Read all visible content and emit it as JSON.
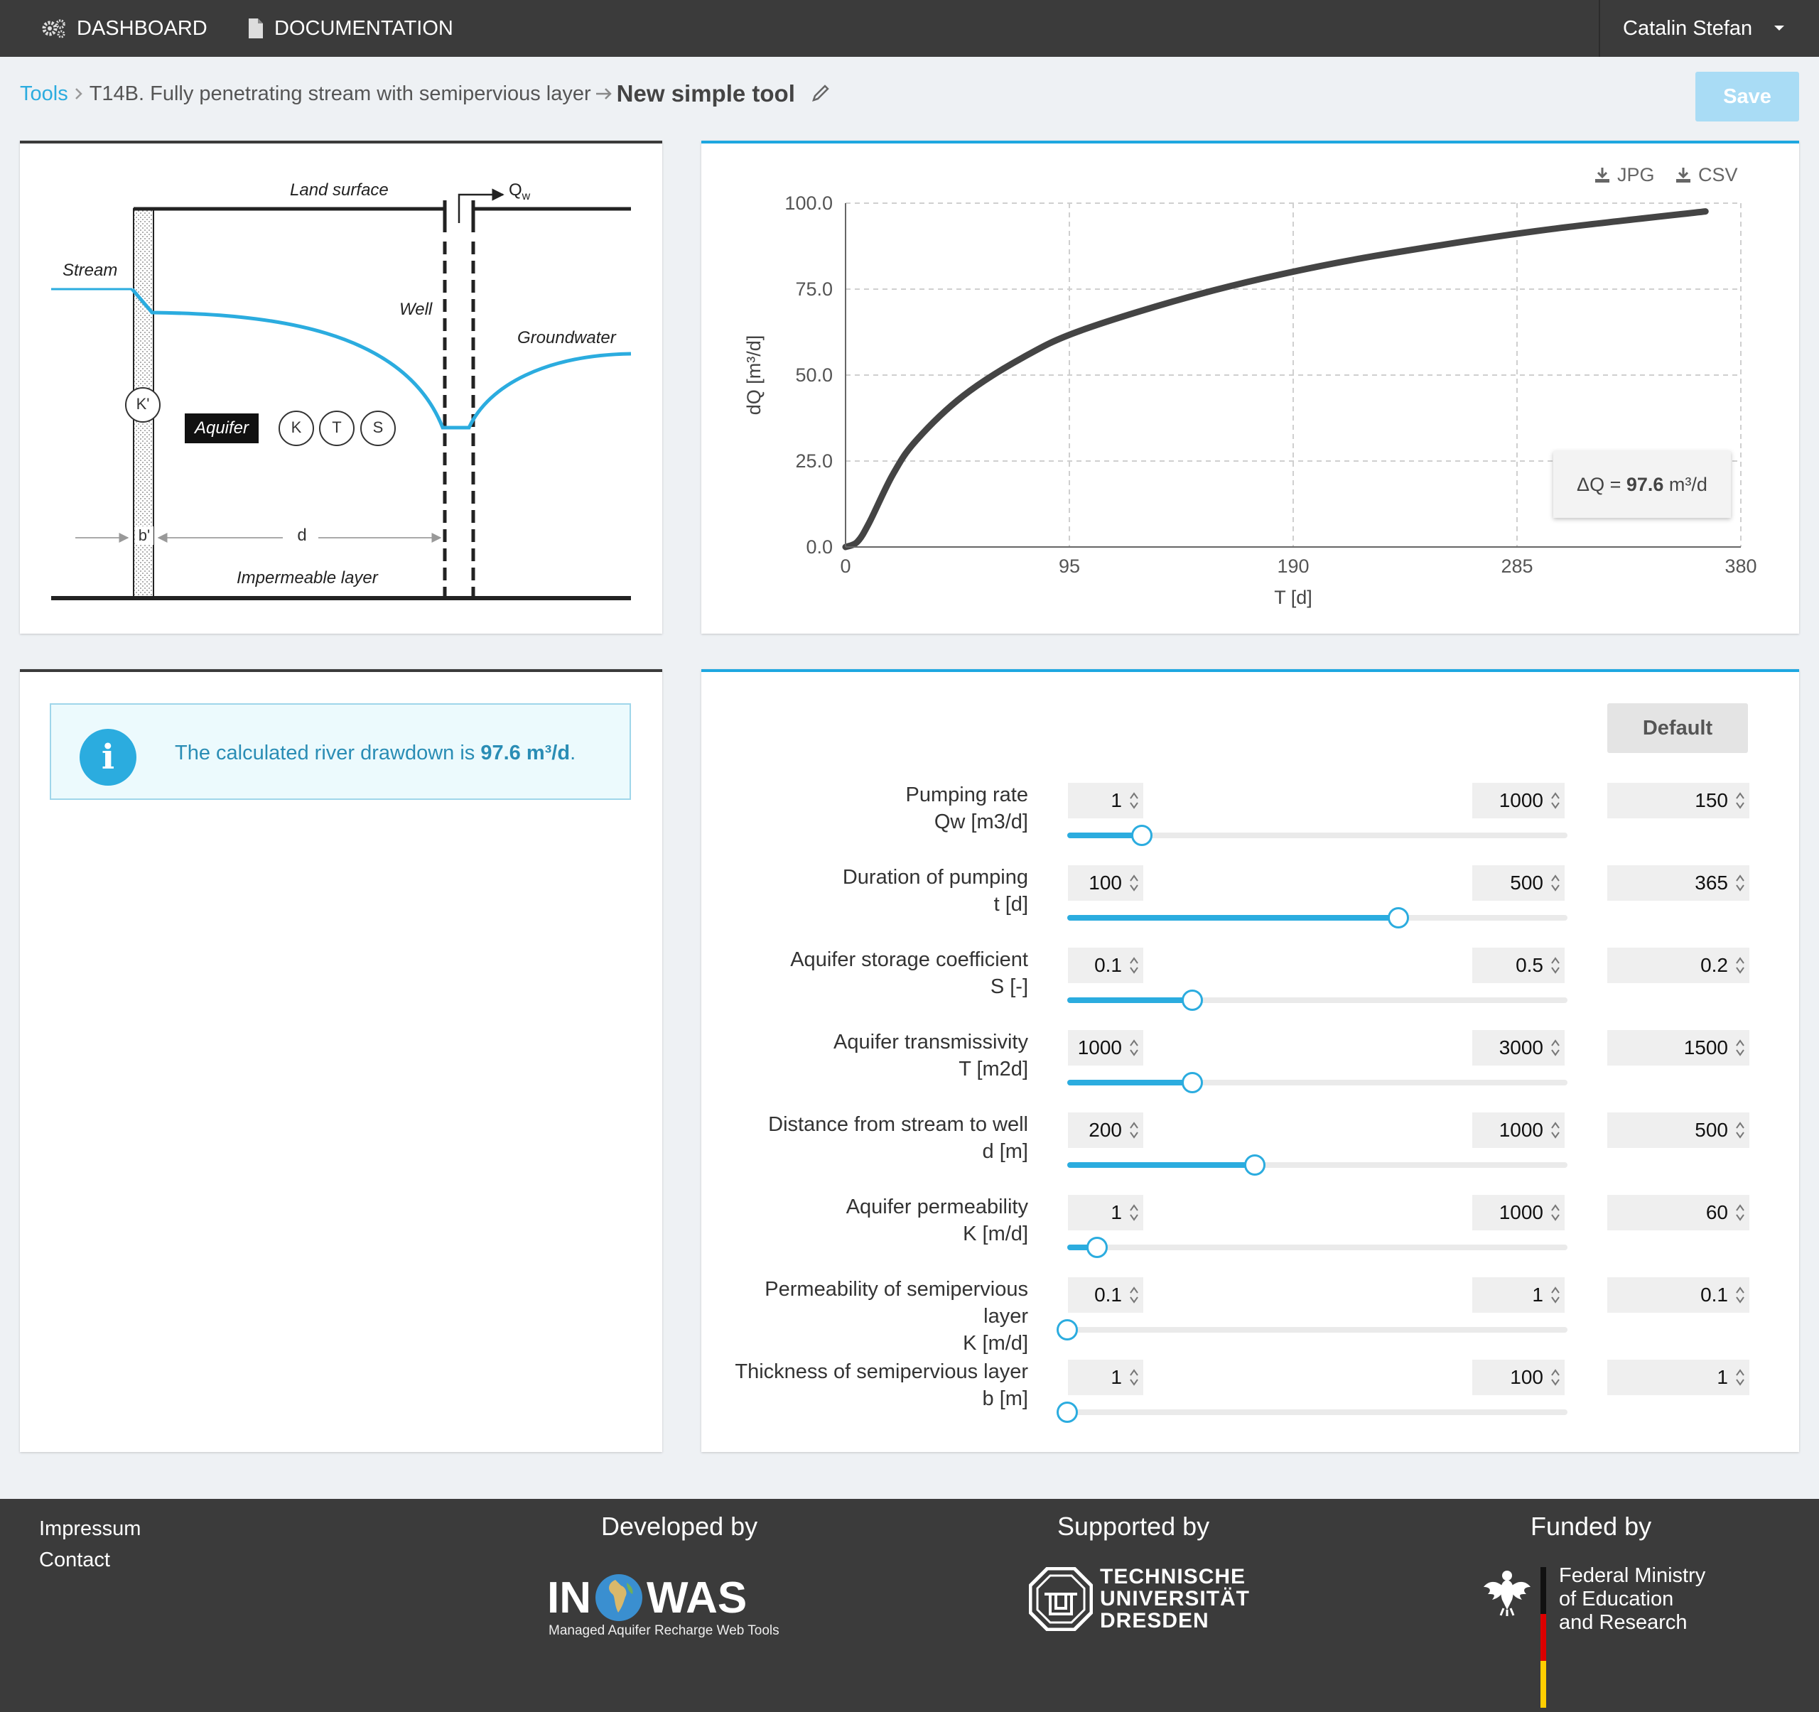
{
  "nav": {
    "dashboard": "DASHBOARD",
    "documentation": "DOCUMENTATION",
    "user": "Catalin Stefan"
  },
  "breadcrumb": {
    "tools": "Tools",
    "tool": "T14B. Fully penetrating stream with semipervious layer",
    "current": "New simple tool"
  },
  "save_label": "Save",
  "diagram": {
    "land_surface": "Land surface",
    "qw": "Q",
    "qw_sub": "w",
    "stream": "Stream",
    "well": "Well",
    "groundwater": "Groundwater",
    "aquifer": "Aquifer",
    "k_prime": "K'",
    "k": "K",
    "t": "T",
    "s": "S",
    "b_prime": "b'",
    "d": "d",
    "impermeable": "Impermeable layer"
  },
  "chart_actions": {
    "jpg": "JPG",
    "csv": "CSV"
  },
  "chart_data": {
    "type": "line",
    "xlabel": "T [d]",
    "ylabel": "dQ [m³/d]",
    "xlim": [
      0,
      380
    ],
    "ylim": [
      0,
      100
    ],
    "x_ticks": [
      "0",
      "95",
      "190",
      "285",
      "380"
    ],
    "y_ticks": [
      "0.0",
      "25.0",
      "50.0",
      "75.0",
      "100.0"
    ],
    "grid": true,
    "x": [
      0,
      5,
      10,
      20,
      30,
      50,
      75,
      100,
      150,
      200,
      250,
      300,
      365
    ],
    "values": [
      0,
      1.5,
      7,
      21,
      31,
      44,
      55,
      63,
      73.5,
      81.5,
      87.5,
      92.5,
      97.6
    ],
    "tooltip": {
      "prefix": "ΔQ = ",
      "value": "97.6",
      "unit": " m³/d"
    }
  },
  "info": {
    "prefix": "The calculated river drawdown is ",
    "value": "97.6 m³/d",
    "suffix": "."
  },
  "default_label": "Default",
  "params": [
    {
      "label1": "Pumping rate",
      "label2": "Qw [m3/d]",
      "min": "1",
      "max": "1000",
      "value": "150",
      "fraction": 0.149
    },
    {
      "label1": "Duration of pumping",
      "label2": "t [d]",
      "min": "100",
      "max": "500",
      "value": "365",
      "fraction": 0.6625
    },
    {
      "label1": "Aquifer storage coefficient",
      "label2": "S [-]",
      "min": "0.1",
      "max": "0.5",
      "value": "0.2",
      "fraction": 0.25
    },
    {
      "label1": "Aquifer transmissivity",
      "label2": "T [m2d]",
      "min": "1000",
      "max": "3000",
      "value": "1500",
      "fraction": 0.25
    },
    {
      "label1": "Distance from stream to well",
      "label2": "d [m]",
      "min": "200",
      "max": "1000",
      "value": "500",
      "fraction": 0.375
    },
    {
      "label1": "Aquifer permeability",
      "label2": "K [m/d]",
      "min": "1",
      "max": "1000",
      "value": "60",
      "fraction": 0.059
    },
    {
      "label1": "Permeability of semipervious",
      "label1b": "layer",
      "label2": "K [m/d]",
      "min": "0.1",
      "max": "1",
      "value": "0.1",
      "fraction": 0
    },
    {
      "label1": "Thickness of semipervious layer",
      "label2": "b [m]",
      "min": "1",
      "max": "100",
      "value": "1",
      "fraction": 0
    }
  ],
  "footer": {
    "impressum": "Impressum",
    "contact": "Contact",
    "developed_by": "Developed by",
    "supported_by": "Supported by",
    "funded_by": "Funded by",
    "inowas_in": "IN",
    "inowas_was": "WAS",
    "inowas_sub": "Managed Aquifer Recharge Web Tools",
    "tud_1": "TECHNISCHE",
    "tud_2": "UNIVERSITÄT",
    "tud_3": "DRESDEN",
    "bmbf_1": "Federal Ministry",
    "bmbf_2": "of Education",
    "bmbf_3": "and Research"
  }
}
